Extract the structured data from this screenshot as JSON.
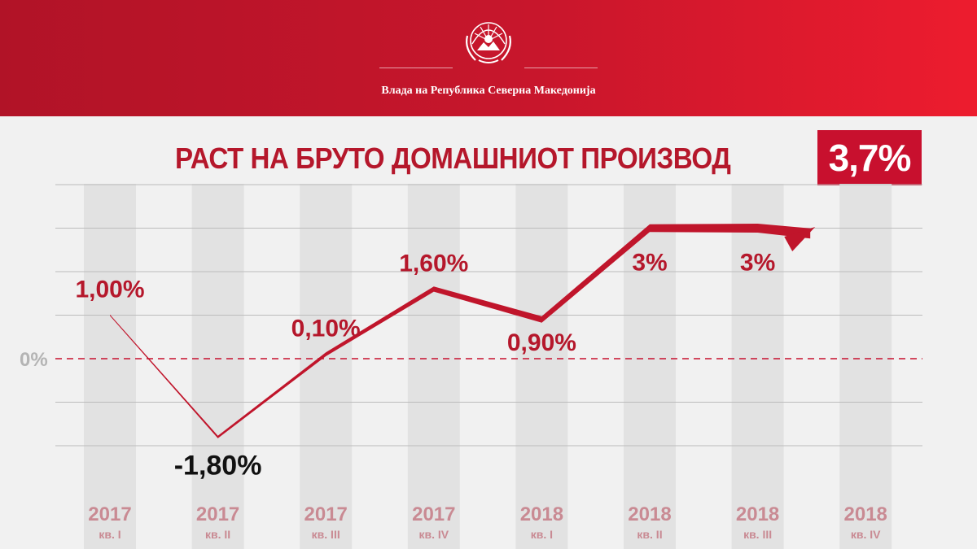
{
  "header": {
    "government_name": "Влада на Република Северна Македонија",
    "colors": {
      "primary": "#c8162c",
      "dark": "#b11327",
      "bright": "#ed1c2e"
    }
  },
  "headline_badge": "3,7%",
  "chart_data": {
    "type": "line",
    "title": "РАСТ НА БРУТО ДОМАШНИОТ ПРОИЗВОД",
    "zero_label": "0%",
    "grid": true,
    "categories": [
      {
        "year": "2017",
        "quarter": "кв. I"
      },
      {
        "year": "2017",
        "quarter": "кв. II"
      },
      {
        "year": "2017",
        "quarter": "кв. III"
      },
      {
        "year": "2017",
        "quarter": "кв. IV"
      },
      {
        "year": "2018",
        "quarter": "кв. I"
      },
      {
        "year": "2018",
        "quarter": "кв. II"
      },
      {
        "year": "2018",
        "quarter": "кв. III"
      },
      {
        "year": "2018",
        "quarter": "кв. IV"
      }
    ],
    "values": [
      1.0,
      -1.8,
      0.1,
      1.6,
      0.9,
      3.0,
      3.0,
      3.7
    ],
    "labels": [
      "1,00%",
      "-1,80%",
      "0,10%",
      "1,60%",
      "0,90%",
      "3%",
      "3%",
      ""
    ],
    "ylim": [
      -2,
      4
    ],
    "colors": {
      "line": "#c0152b",
      "label": "#b5172b",
      "negative_label": "#111111",
      "axis_label": "#c98a93"
    }
  }
}
